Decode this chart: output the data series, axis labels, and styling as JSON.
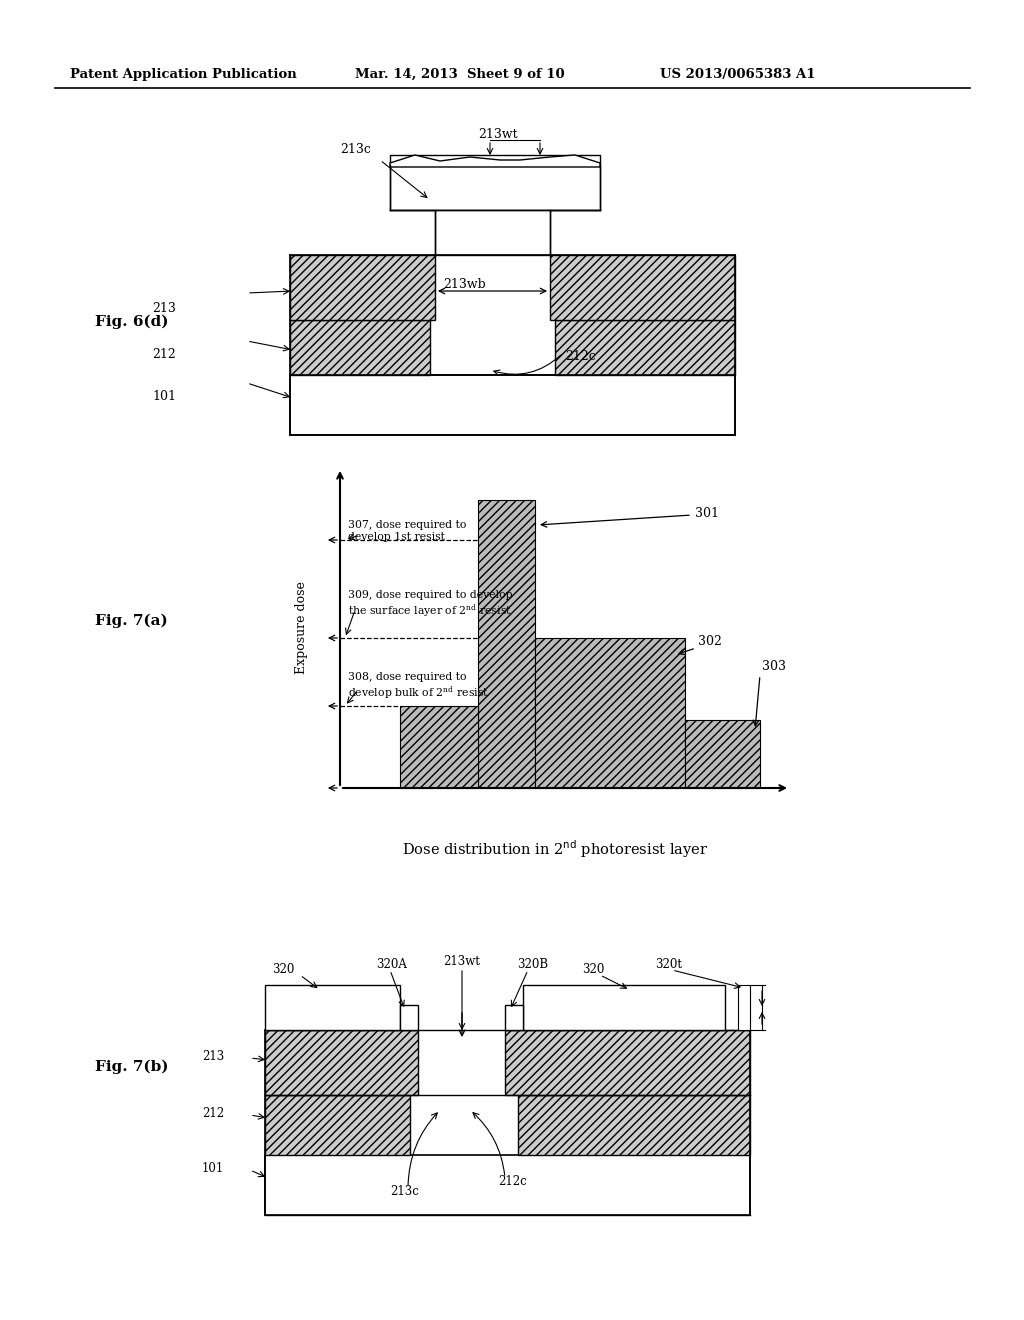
{
  "bg_color": "#ffffff",
  "header_left": "Patent Application Publication",
  "header_mid": "Mar. 14, 2013  Sheet 9 of 10",
  "header_right": "US 2013/0065383 A1",
  "fig6d_label": "Fig. 6(d)",
  "fig7a_label": "Fig. 7(a)",
  "fig7b_label": "Fig. 7(b)"
}
